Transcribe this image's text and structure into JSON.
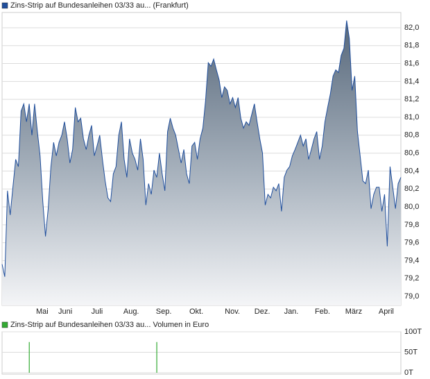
{
  "chart_data": [
    {
      "type": "area",
      "series": [
        {
          "name": "Zins-Strip auf Bundesanleihen 03/33 au... (Frankfurt)",
          "color": "#1f4e9c",
          "values": [
            79.36,
            79.22,
            80.18,
            79.91,
            80.22,
            80.53,
            80.45,
            81.07,
            81.15,
            80.95,
            81.15,
            80.8,
            81.15,
            80.84,
            80.57,
            80.06,
            79.67,
            79.98,
            80.45,
            80.72,
            80.57,
            80.72,
            80.8,
            80.95,
            80.76,
            80.49,
            80.64,
            81.11,
            80.95,
            80.99,
            80.76,
            80.64,
            80.8,
            80.91,
            80.57,
            80.68,
            80.8,
            80.53,
            80.29,
            80.1,
            80.06,
            80.37,
            80.45,
            80.8,
            80.95,
            80.53,
            80.33,
            80.76,
            80.6,
            80.53,
            80.41,
            80.76,
            80.53,
            80.02,
            80.26,
            80.14,
            80.41,
            80.33,
            80.6,
            80.37,
            80.18,
            80.84,
            80.99,
            80.88,
            80.8,
            80.64,
            80.49,
            80.64,
            80.37,
            80.26,
            80.68,
            80.72,
            80.53,
            80.76,
            80.88,
            81.19,
            81.61,
            81.57,
            81.65,
            81.53,
            81.42,
            81.22,
            81.34,
            81.3,
            81.15,
            81.22,
            81.11,
            81.22,
            80.99,
            80.88,
            80.95,
            80.91,
            81.03,
            81.15,
            80.95,
            80.76,
            80.6,
            80.02,
            80.14,
            80.1,
            80.22,
            80.18,
            80.26,
            79.95,
            80.33,
            80.41,
            80.45,
            80.57,
            80.64,
            80.72,
            80.8,
            80.68,
            80.76,
            80.53,
            80.64,
            80.76,
            80.84,
            80.53,
            80.68,
            80.95,
            81.11,
            81.26,
            81.46,
            81.53,
            81.5,
            81.69,
            81.77,
            82.08,
            81.88,
            81.3,
            81.46,
            80.84,
            80.57,
            80.29,
            80.26,
            80.41,
            79.98,
            80.14,
            80.22,
            80.22,
            79.95,
            80.14,
            79.56,
            80.45,
            80.22,
            79.98,
            80.26,
            80.33
          ]
        }
      ],
      "ylim": [
        78.9,
        82.17
      ],
      "yticks": [
        {
          "value": 79.0,
          "label": "79,0"
        },
        {
          "value": 79.2,
          "label": "79,2"
        },
        {
          "value": 79.4,
          "label": "79,4"
        },
        {
          "value": 79.6,
          "label": "79,6"
        },
        {
          "value": 79.8,
          "label": "79,8"
        },
        {
          "value": 80.0,
          "label": "80,0"
        },
        {
          "value": 80.2,
          "label": "80,2"
        },
        {
          "value": 80.4,
          "label": "80,4"
        },
        {
          "value": 80.6,
          "label": "80,6"
        },
        {
          "value": 80.8,
          "label": "80,8"
        },
        {
          "value": 81.0,
          "label": "81,0"
        },
        {
          "value": 81.2,
          "label": "81,2"
        },
        {
          "value": 81.4,
          "label": "81,4"
        },
        {
          "value": 81.6,
          "label": "81,6"
        },
        {
          "value": 81.8,
          "label": "81,8"
        },
        {
          "value": 82.0,
          "label": "82,0"
        }
      ],
      "xticks": [
        {
          "value": 14.8,
          "label": "Mai"
        },
        {
          "value": 23.3,
          "label": "Juni"
        },
        {
          "value": 35.0,
          "label": "Juli"
        },
        {
          "value": 47.6,
          "label": "Aug."
        },
        {
          "value": 59.6,
          "label": "Sep."
        },
        {
          "value": 71.6,
          "label": "Okt."
        },
        {
          "value": 84.9,
          "label": "Nov."
        },
        {
          "value": 95.9,
          "label": "Dez."
        },
        {
          "value": 106.6,
          "label": "Jan."
        },
        {
          "value": 118.1,
          "label": "Feb."
        },
        {
          "value": 129.6,
          "label": "März"
        },
        {
          "value": 141.6,
          "label": "April"
        }
      ],
      "grid": true
    },
    {
      "type": "bar",
      "series": [
        {
          "name": "Zins-Strip auf Bundesanleihen 03/33 au... Volumen in Euro",
          "color": "#33aa33",
          "x": [
            10,
            57
          ],
          "values": [
            75000,
            75000
          ]
        }
      ],
      "ylim": [
        0,
        100000
      ],
      "yticks": [
        {
          "value": 0,
          "label": "0T"
        },
        {
          "value": 50000,
          "label": "50T"
        },
        {
          "value": 100000,
          "label": "100T"
        }
      ],
      "grid": true
    }
  ]
}
